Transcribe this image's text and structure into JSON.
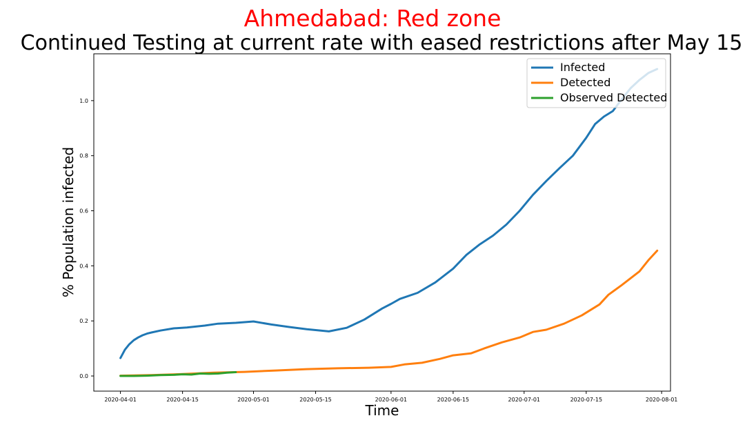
{
  "chart_data": {
    "type": "line",
    "suptitle": "Ahmedabad: Red zone",
    "suptitle_color": "#ff0000",
    "title": "Continued Testing at current rate with eased restrictions after May 15",
    "xlabel": "Time",
    "ylabel": "% Population infected",
    "x_ticks": [
      "2020-04-01",
      "2020-04-15",
      "2020-05-01",
      "2020-05-15",
      "2020-06-01",
      "2020-06-15",
      "2020-07-01",
      "2020-07-15",
      "2020-08-01"
    ],
    "y_ticks": [
      "0.0",
      "0.2",
      "0.4",
      "0.6",
      "0.8",
      "1.0"
    ],
    "xlim": [
      "2020-03-26",
      "2020-08-03"
    ],
    "ylim": [
      -0.055,
      1.17
    ],
    "grid": false,
    "legend_position": "top-right",
    "series": [
      {
        "name": "Infected",
        "color": "#1f77b4",
        "points": [
          [
            "2020-04-01",
            0.065
          ],
          [
            "2020-04-02",
            0.095
          ],
          [
            "2020-04-03",
            0.115
          ],
          [
            "2020-04-04",
            0.13
          ],
          [
            "2020-04-05",
            0.14
          ],
          [
            "2020-04-06",
            0.148
          ],
          [
            "2020-04-07",
            0.154
          ],
          [
            "2020-04-08",
            0.158
          ],
          [
            "2020-04-10",
            0.165
          ],
          [
            "2020-04-13",
            0.173
          ],
          [
            "2020-04-16",
            0.176
          ],
          [
            "2020-04-20",
            0.183
          ],
          [
            "2020-04-23",
            0.19
          ],
          [
            "2020-04-27",
            0.193
          ],
          [
            "2020-05-01",
            0.198
          ],
          [
            "2020-05-05",
            0.187
          ],
          [
            "2020-05-09",
            0.178
          ],
          [
            "2020-05-13",
            0.17
          ],
          [
            "2020-05-18",
            0.162
          ],
          [
            "2020-05-22",
            0.175
          ],
          [
            "2020-05-26",
            0.205
          ],
          [
            "2020-05-30",
            0.245
          ],
          [
            "2020-06-01",
            0.262
          ],
          [
            "2020-06-03",
            0.28
          ],
          [
            "2020-06-07",
            0.302
          ],
          [
            "2020-06-11",
            0.34
          ],
          [
            "2020-06-15",
            0.39
          ],
          [
            "2020-06-18",
            0.44
          ],
          [
            "2020-06-21",
            0.478
          ],
          [
            "2020-06-24",
            0.51
          ],
          [
            "2020-06-27",
            0.55
          ],
          [
            "2020-06-30",
            0.6
          ],
          [
            "2020-07-03",
            0.658
          ],
          [
            "2020-07-06",
            0.708
          ],
          [
            "2020-07-09",
            0.755
          ],
          [
            "2020-07-12",
            0.8
          ],
          [
            "2020-07-15",
            0.865
          ],
          [
            "2020-07-17",
            0.915
          ],
          [
            "2020-07-19",
            0.942
          ],
          [
            "2020-07-21",
            0.962
          ],
          [
            "2020-07-23",
            1.005
          ],
          [
            "2020-07-25",
            1.045
          ],
          [
            "2020-07-27",
            1.075
          ],
          [
            "2020-07-29",
            1.1
          ],
          [
            "2020-07-31",
            1.115
          ]
        ]
      },
      {
        "name": "Detected",
        "color": "#ff7f0e",
        "points": [
          [
            "2020-04-01",
            0.001
          ],
          [
            "2020-04-08",
            0.003
          ],
          [
            "2020-04-15",
            0.007
          ],
          [
            "2020-04-22",
            0.012
          ],
          [
            "2020-04-29",
            0.015
          ],
          [
            "2020-05-06",
            0.02
          ],
          [
            "2020-05-13",
            0.025
          ],
          [
            "2020-05-20",
            0.028
          ],
          [
            "2020-05-27",
            0.03
          ],
          [
            "2020-06-01",
            0.033
          ],
          [
            "2020-06-04",
            0.042
          ],
          [
            "2020-06-08",
            0.048
          ],
          [
            "2020-06-12",
            0.062
          ],
          [
            "2020-06-15",
            0.075
          ],
          [
            "2020-06-19",
            0.082
          ],
          [
            "2020-06-22",
            0.1
          ],
          [
            "2020-06-26",
            0.122
          ],
          [
            "2020-06-30",
            0.14
          ],
          [
            "2020-07-03",
            0.16
          ],
          [
            "2020-07-06",
            0.168
          ],
          [
            "2020-07-10",
            0.19
          ],
          [
            "2020-07-14",
            0.22
          ],
          [
            "2020-07-18",
            0.26
          ],
          [
            "2020-07-20",
            0.295
          ],
          [
            "2020-07-23",
            0.33
          ],
          [
            "2020-07-27",
            0.38
          ],
          [
            "2020-07-29",
            0.42
          ],
          [
            "2020-07-31",
            0.455
          ]
        ]
      },
      {
        "name": "Observed Detected",
        "color": "#2ca02c",
        "points": [
          [
            "2020-04-01",
            0.0
          ],
          [
            "2020-04-04",
            0.0
          ],
          [
            "2020-04-07",
            0.001
          ],
          [
            "2020-04-10",
            0.003
          ],
          [
            "2020-04-13",
            0.004
          ],
          [
            "2020-04-15",
            0.006
          ],
          [
            "2020-04-17",
            0.005
          ],
          [
            "2020-04-19",
            0.009
          ],
          [
            "2020-04-21",
            0.008
          ],
          [
            "2020-04-23",
            0.009
          ],
          [
            "2020-04-25",
            0.012
          ],
          [
            "2020-04-27",
            0.014
          ]
        ]
      }
    ]
  }
}
